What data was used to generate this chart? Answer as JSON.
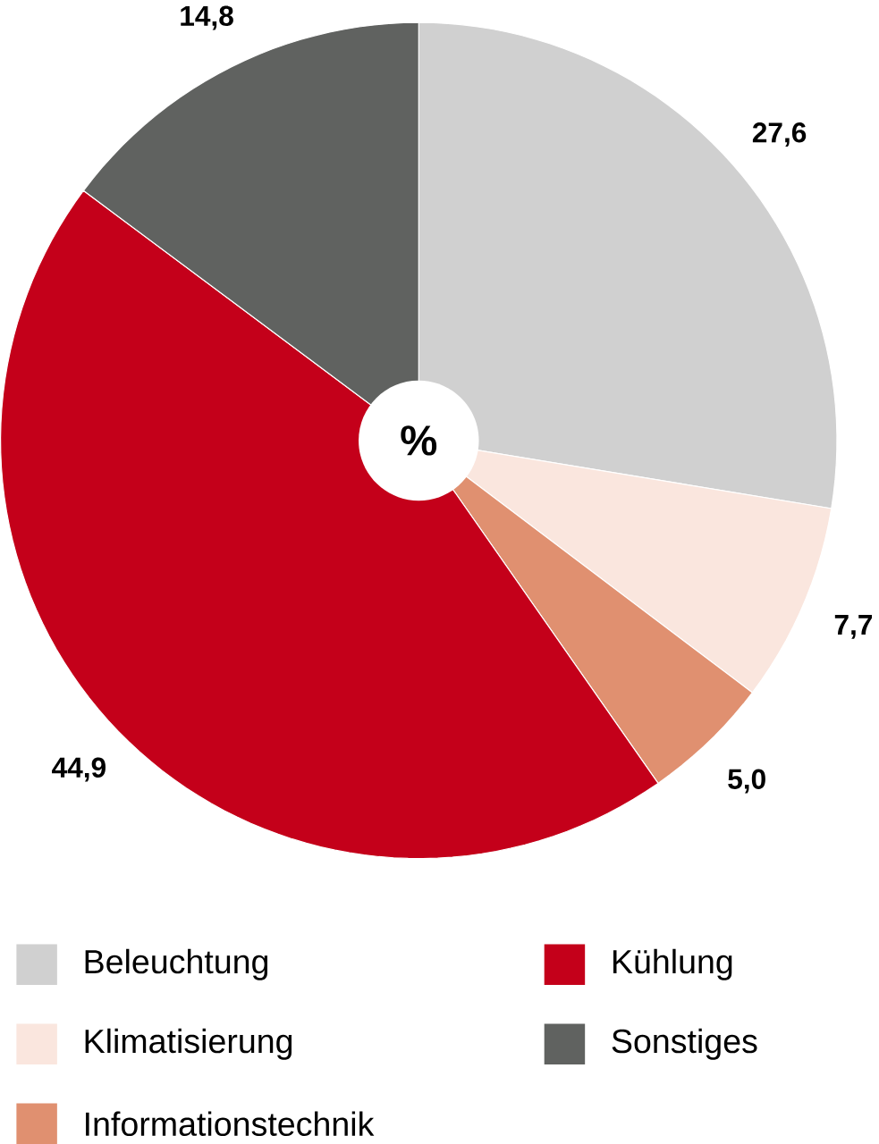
{
  "chart_data": {
    "type": "pie",
    "title": "%",
    "categories": [
      "Beleuchtung",
      "Klimatisierung",
      "Informationstechnik",
      "Kühlung",
      "Sonstiges"
    ],
    "values": [
      27.6,
      7.7,
      5.0,
      44.9,
      14.8
    ],
    "value_labels": [
      "27,6",
      "7,7",
      "5,0",
      "44,9",
      "14,8"
    ],
    "colors": [
      "#d0d0d0",
      "#fae6de",
      "#e09070",
      "#c4001a",
      "#606260"
    ],
    "legend": "bottom"
  }
}
